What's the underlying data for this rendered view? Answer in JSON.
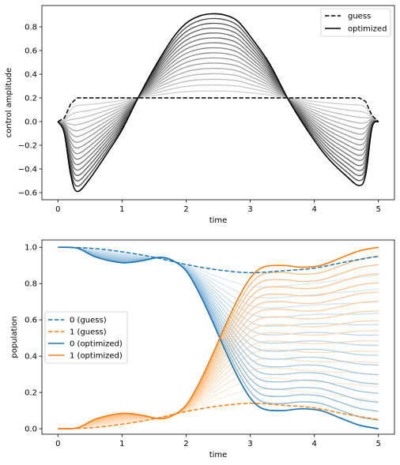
{
  "chart_data": [
    {
      "type": "line",
      "xlabel": "time",
      "ylabel": "control amplitude",
      "xlim": [
        -0.25,
        5.25
      ],
      "ylim": [
        -0.66,
        0.98
      ],
      "xticks": [
        0,
        1,
        2,
        3,
        4,
        5
      ],
      "yticks": [
        -0.6,
        -0.4,
        -0.2,
        0.0,
        0.2,
        0.4,
        0.6,
        0.8
      ],
      "ytick_labels": [
        "−0.6",
        "−0.4",
        "−0.2",
        "0.0",
        "0.2",
        "0.4",
        "0.6",
        "0.8"
      ],
      "grid": false,
      "legend": {
        "placement": "top-right",
        "entries": [
          "guess",
          "optimized"
        ]
      },
      "colors": {
        "guess": "#000000",
        "optimized": "#000000",
        "iterations": "#808080"
      },
      "series": [
        {
          "name": "guess",
          "style": "dashed",
          "x": [
            0,
            0.1,
            0.2,
            0.3,
            0.5,
            1.0,
            2.0,
            3.0,
            4.0,
            4.5,
            4.7,
            4.8,
            4.9,
            5.0
          ],
          "values": [
            0.0,
            0.03,
            0.15,
            0.2,
            0.2,
            0.2,
            0.2,
            0.2,
            0.2,
            0.2,
            0.2,
            0.17,
            0.05,
            0.0
          ]
        },
        {
          "name": "optimized",
          "style": "solid",
          "x": [
            0,
            0.1,
            0.2,
            0.3,
            0.5,
            0.8,
            1.0,
            1.25,
            1.5,
            1.8,
            2.0,
            2.2,
            2.4,
            2.6,
            2.8,
            3.0,
            3.3,
            3.6,
            3.9,
            4.2,
            4.5,
            4.7,
            4.8,
            4.9,
            5.0
          ],
          "values": [
            0.0,
            -0.1,
            -0.45,
            -0.59,
            -0.48,
            -0.24,
            -0.07,
            0.2,
            0.45,
            0.71,
            0.83,
            0.89,
            0.91,
            0.9,
            0.85,
            0.72,
            0.49,
            0.18,
            -0.08,
            -0.3,
            -0.46,
            -0.54,
            -0.45,
            -0.05,
            0.0
          ]
        }
      ],
      "iterations": 16
    },
    {
      "type": "line",
      "xlabel": "time",
      "ylabel": "population",
      "xlim": [
        -0.25,
        5.25
      ],
      "ylim": [
        -0.03,
        1.04
      ],
      "xticks": [
        0,
        1,
        2,
        3,
        4,
        5
      ],
      "yticks": [
        0.0,
        0.2,
        0.4,
        0.6,
        0.8,
        1.0
      ],
      "ytick_labels": [
        "0.0",
        "0.2",
        "0.4",
        "0.6",
        "0.8",
        "1.0"
      ],
      "grid": false,
      "legend": {
        "placement": "center-left",
        "entries": [
          "0 (guess)",
          "1 (guess)",
          "0 (optimized)",
          "1 (optimized)"
        ]
      },
      "colors": {
        "blue": "#1f77b4",
        "orange": "#ff7f0e"
      },
      "series": [
        {
          "name": "0 (guess)",
          "style": "dashed",
          "color": "#1f77b4",
          "x": [
            0,
            0.5,
            1.0,
            1.5,
            2.0,
            2.5,
            3.0,
            3.5,
            4.0,
            4.5,
            5.0
          ],
          "values": [
            1.0,
            0.995,
            0.975,
            0.945,
            0.905,
            0.875,
            0.86,
            0.87,
            0.885,
            0.92,
            0.95
          ]
        },
        {
          "name": "1 (guess)",
          "style": "dashed",
          "color": "#ff7f0e",
          "x": [
            0,
            0.5,
            1.0,
            1.5,
            2.0,
            2.5,
            3.0,
            3.5,
            4.0,
            4.5,
            5.0
          ],
          "values": [
            0.0,
            0.005,
            0.025,
            0.055,
            0.095,
            0.125,
            0.14,
            0.13,
            0.115,
            0.08,
            0.05
          ]
        },
        {
          "name": "0 (optimized)",
          "style": "solid",
          "color": "#1f77b4",
          "x": [
            0,
            0.3,
            0.6,
            1.0,
            1.3,
            1.6,
            1.8,
            2.0,
            2.2,
            2.4,
            2.6,
            2.8,
            3.0,
            3.2,
            3.5,
            3.8,
            4.1,
            4.4,
            4.7,
            5.0
          ],
          "values": [
            1.0,
            0.995,
            0.945,
            0.915,
            0.925,
            0.945,
            0.925,
            0.87,
            0.75,
            0.6,
            0.44,
            0.29,
            0.17,
            0.11,
            0.1,
            0.11,
            0.1,
            0.06,
            0.02,
            0.0
          ]
        },
        {
          "name": "1 (optimized)",
          "style": "solid",
          "color": "#ff7f0e",
          "x": [
            0,
            0.3,
            0.6,
            1.0,
            1.3,
            1.6,
            1.8,
            2.0,
            2.2,
            2.4,
            2.6,
            2.8,
            3.0,
            3.2,
            3.5,
            3.8,
            4.1,
            4.4,
            4.7,
            5.0
          ],
          "values": [
            0.0,
            0.005,
            0.055,
            0.085,
            0.075,
            0.055,
            0.075,
            0.13,
            0.25,
            0.4,
            0.56,
            0.71,
            0.83,
            0.89,
            0.9,
            0.89,
            0.9,
            0.94,
            0.98,
            1.0
          ]
        }
      ],
      "iterations": 16
    }
  ]
}
